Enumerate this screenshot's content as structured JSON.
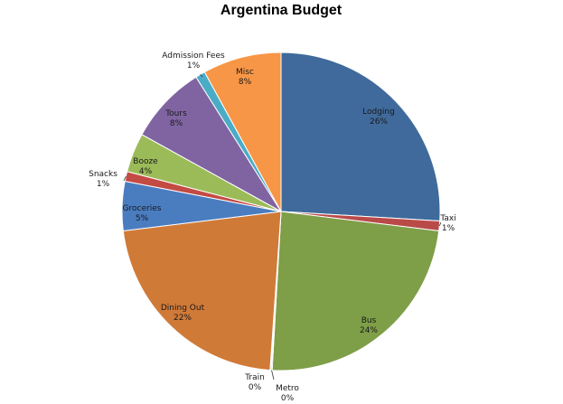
{
  "chart_data": {
    "type": "pie",
    "title": "Argentina Budget",
    "series": [
      {
        "name": "Lodging",
        "value": 26,
        "label": "26%",
        "color": "#3F6A9B"
      },
      {
        "name": "Taxi",
        "value": 1,
        "label": "1%",
        "color": "#B94A48"
      },
      {
        "name": "Bus",
        "value": 24,
        "label": "24%",
        "color": "#7E9E48"
      },
      {
        "name": "Metro",
        "value": 0,
        "label": "0%",
        "color": "#6A4E8E"
      },
      {
        "name": "Train",
        "value": 0,
        "label": "0%",
        "color": "#2F9AB5"
      },
      {
        "name": "Dining Out",
        "value": 22,
        "label": "22%",
        "color": "#D07A38"
      },
      {
        "name": "Groceries",
        "value": 5,
        "label": "5%",
        "color": "#4A7CC0"
      },
      {
        "name": "Snacks",
        "value": 1,
        "label": "1%",
        "color": "#C44A44"
      },
      {
        "name": "Booze",
        "value": 4,
        "label": "4%",
        "color": "#9BBB59"
      },
      {
        "name": "Tours",
        "value": 8,
        "label": "8%",
        "color": "#8064A2"
      },
      {
        "name": "Admission Fees",
        "value": 1,
        "label": "1%",
        "color": "#4BACC6"
      },
      {
        "name": "Misc",
        "value": 8,
        "label": "8%",
        "color": "#F79646"
      }
    ],
    "legend": "none"
  }
}
